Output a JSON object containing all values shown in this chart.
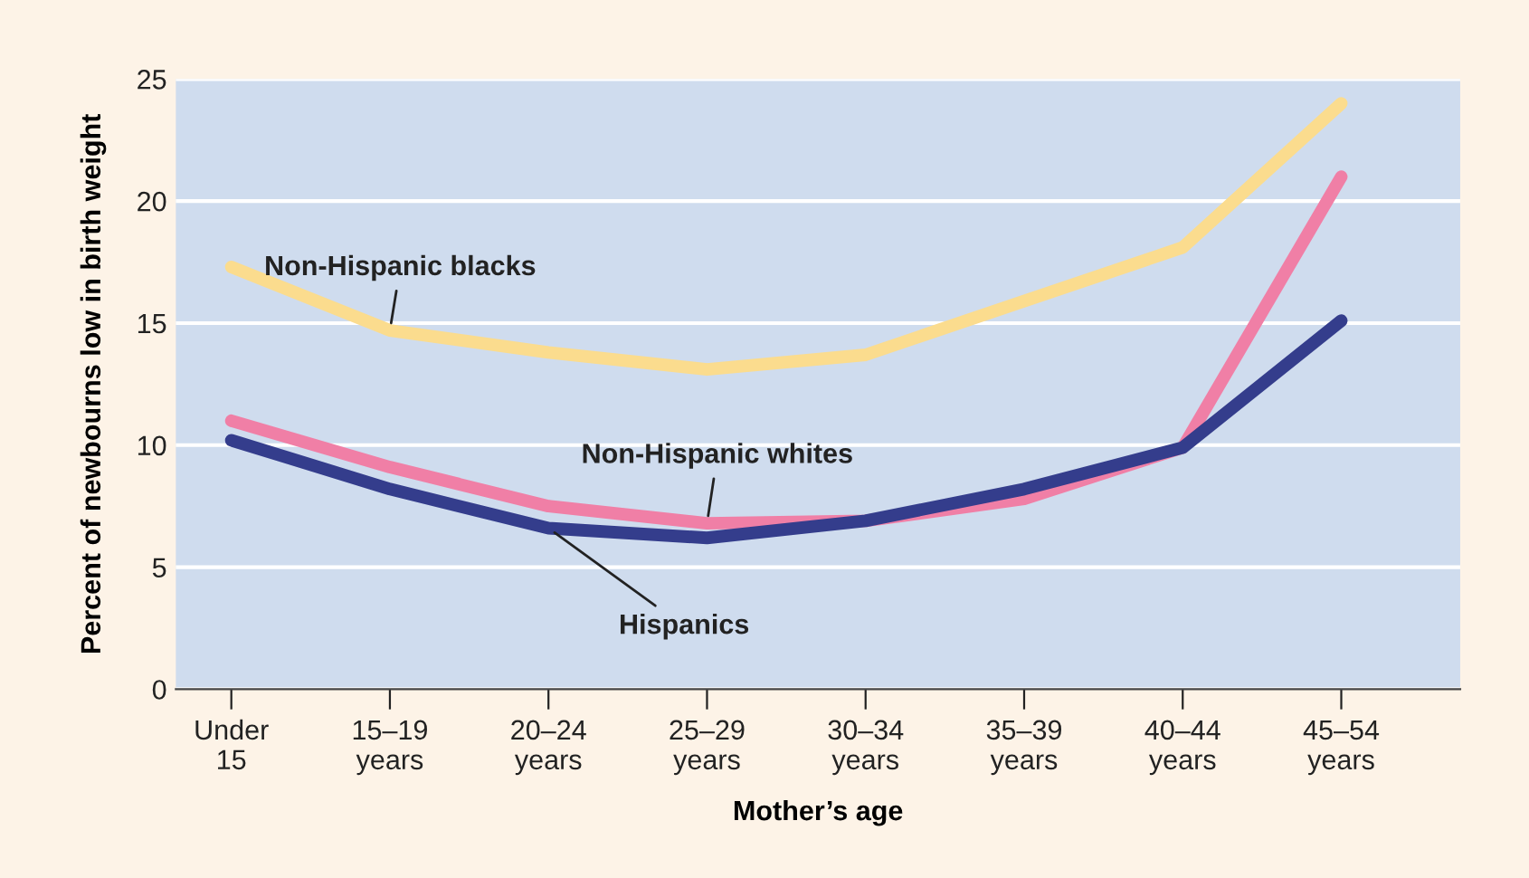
{
  "chart_data": {
    "type": "line",
    "xlabel": "Mother’s age",
    "ylabel": "Percent of newbourns low in birth weight",
    "categories": [
      "Under\n15",
      "15–19\nyears",
      "20–24\nyears",
      "25–29\nyears",
      "30–34\nyears",
      "35–39\nyears",
      "40–44\nyears",
      "45–54\nyears"
    ],
    "series": [
      {
        "name": "Non-Hispanic blacks",
        "color": "#fbdc8e",
        "values": [
          17.3,
          14.7,
          13.8,
          13.1,
          13.7,
          15.9,
          18.1,
          24.0
        ]
      },
      {
        "name": "Non-Hispanic whites",
        "color": "#f07fa6",
        "values": [
          11.0,
          9.1,
          7.5,
          6.8,
          6.9,
          7.8,
          9.9,
          21.0
        ]
      },
      {
        "name": "Hispanics",
        "color": "#343d8c",
        "values": [
          10.2,
          8.2,
          6.6,
          6.2,
          6.9,
          8.2,
          9.9,
          15.1
        ]
      }
    ],
    "ylim": [
      0,
      25
    ],
    "yticks": [
      0,
      5,
      10,
      15,
      20,
      25
    ],
    "grid": "y",
    "legend": false,
    "marker": "none",
    "line_style": "solid"
  }
}
